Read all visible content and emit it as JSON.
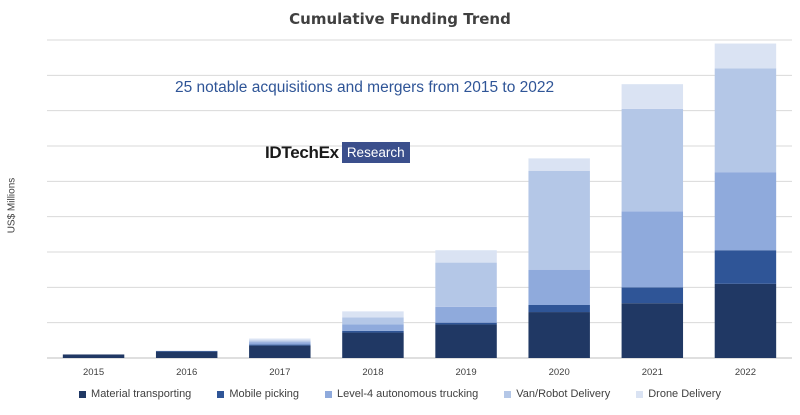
{
  "chart_data": {
    "type": "bar",
    "stacked": true,
    "title": "Cumulative Funding Trend",
    "xlabel": "",
    "ylabel": "US$ Millions",
    "categories": [
      "2015",
      "2016",
      "2017",
      "2018",
      "2019",
      "2020",
      "2021",
      "2022"
    ],
    "ylim": [
      0,
      9
    ],
    "grid": true,
    "series": [
      {
        "name": "Material transporting",
        "color": "#203864",
        "values": [
          0.1,
          0.18,
          0.35,
          0.72,
          0.95,
          1.3,
          1.55,
          2.1
        ]
      },
      {
        "name": "Mobile picking",
        "color": "#2f5597",
        "values": [
          0.0,
          0.02,
          0.03,
          0.05,
          0.05,
          0.2,
          0.45,
          0.95
        ]
      },
      {
        "name": "Level-4 autonomous trucking",
        "color": "#8faadc",
        "values": [
          0.0,
          0.0,
          0.07,
          0.18,
          0.45,
          1.0,
          2.15,
          2.2
        ]
      },
      {
        "name": "Van/Robot Delivery",
        "color": "#b4c7e7",
        "values": [
          0.0,
          0.0,
          0.05,
          0.2,
          1.25,
          2.8,
          2.9,
          2.95
        ]
      },
      {
        "name": "Drone Delivery",
        "color": "#dae3f3",
        "values": [
          0.0,
          0.0,
          0.05,
          0.17,
          0.35,
          0.35,
          0.7,
          0.7
        ]
      }
    ],
    "annotation": "25 notable acquisitions and mergers from 2015 to 2022",
    "legend_position": "bottom"
  },
  "logo": {
    "brand": "IDTechEx",
    "sub": "Research"
  }
}
